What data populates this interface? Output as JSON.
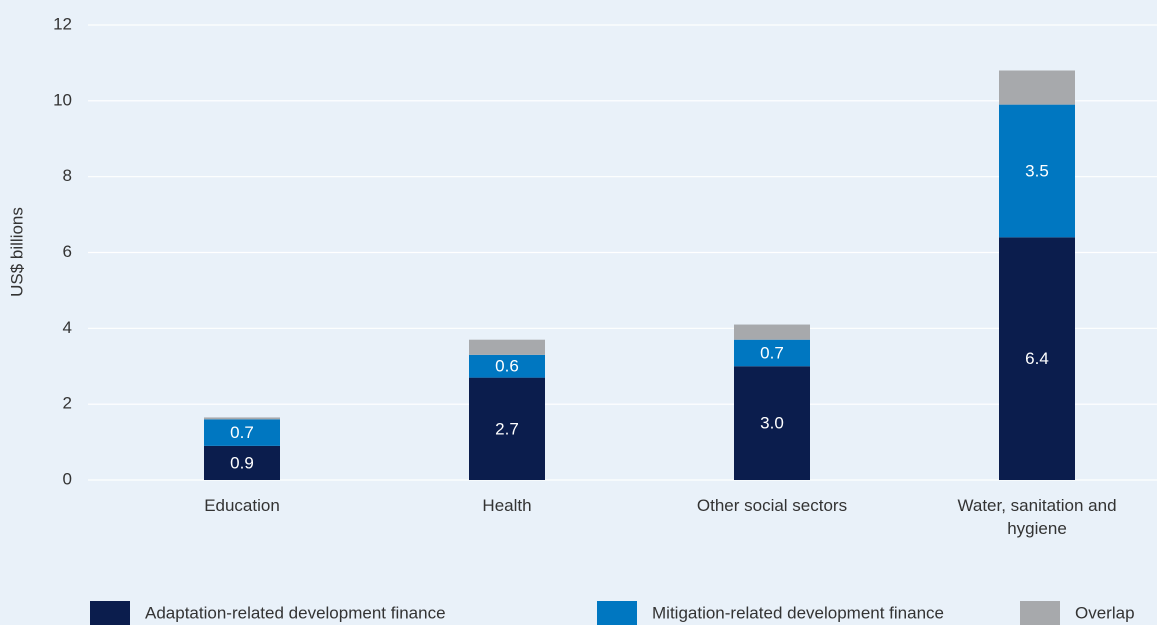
{
  "chart_data": {
    "type": "stacked_bar",
    "y_axis_label": "US$ billions",
    "categories": [
      "Education",
      "Health",
      "Other social sectors",
      "Water, sanitation and hygiene"
    ],
    "series": [
      {
        "name": "Adaptation-related development finance",
        "color": "#0b1d4d",
        "values": [
          0.9,
          2.7,
          3.0,
          6.4
        ],
        "value_labels": [
          "0.9",
          "2.7",
          "3.0",
          "6.4"
        ]
      },
      {
        "name": "Mitigation-related development finance",
        "color": "#0077c1",
        "values": [
          0.7,
          0.6,
          0.7,
          3.5
        ],
        "value_labels": [
          "0.7",
          "0.6",
          "0.7",
          "3.5"
        ]
      },
      {
        "name": "Overlap",
        "color": "#a7a9ac",
        "values": [
          0.05,
          0.4,
          0.4,
          0.9
        ]
      }
    ],
    "ylim": [
      0,
      12
    ],
    "yticks": [
      0,
      2,
      4,
      6,
      8,
      10,
      12
    ],
    "grid": true,
    "legend": "bottom"
  }
}
